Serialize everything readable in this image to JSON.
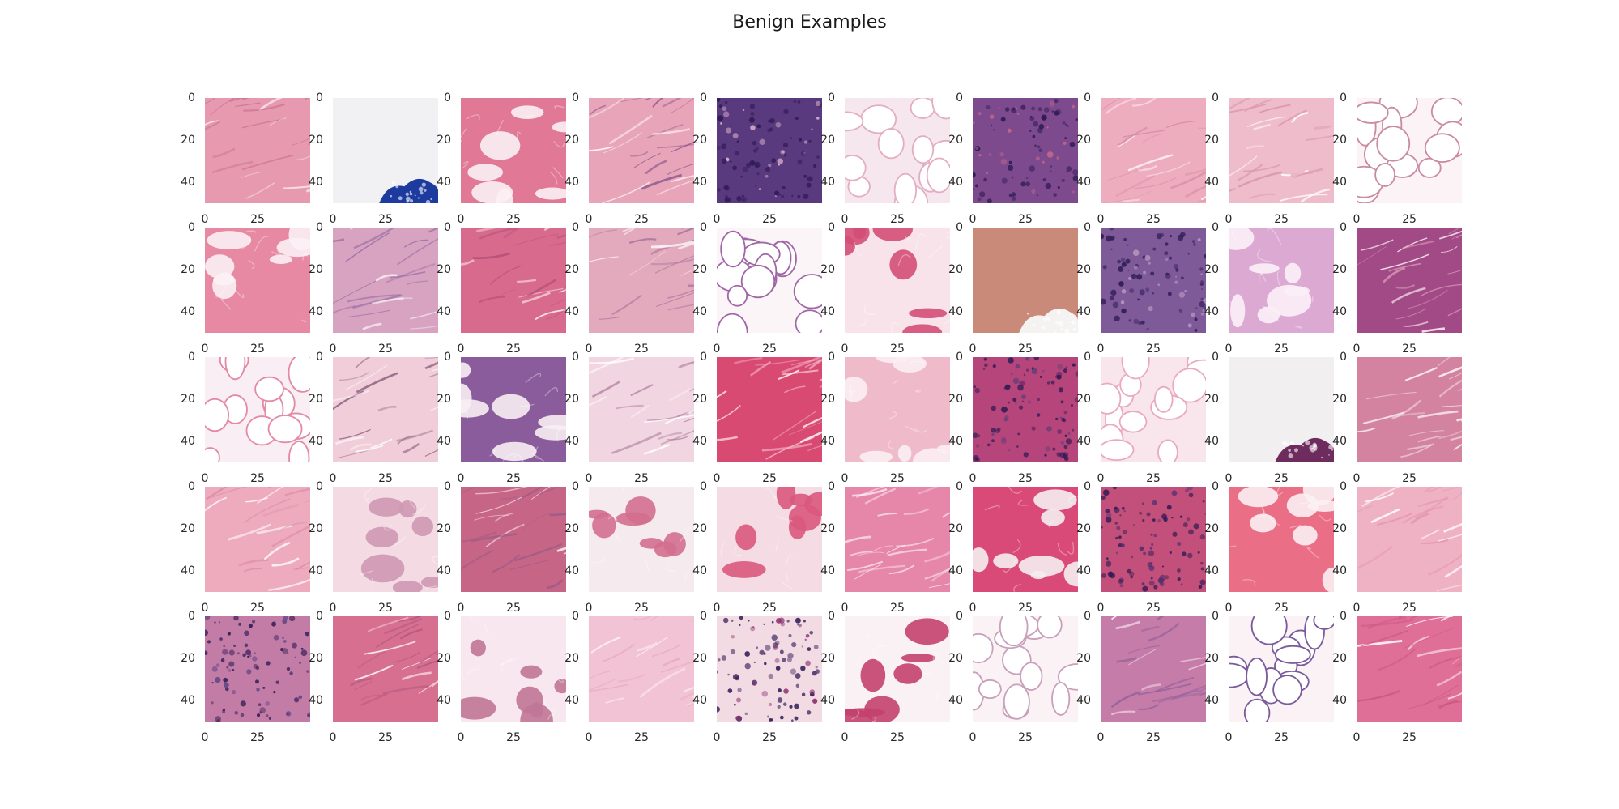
{
  "figure": {
    "title": "Benign Examples",
    "rows": 5,
    "cols": 10,
    "y_tick_labels": [
      "0",
      "20",
      "40"
    ],
    "x_tick_labels": [
      "0",
      "25"
    ],
    "tiles": [
      {
        "base": "#e79aaf",
        "accent": "#c46c89",
        "pattern": "fibers"
      },
      {
        "base": "#f1f1f3",
        "accent": "#1d3a9e",
        "pattern": "corner-blob"
      },
      {
        "base": "#e07896",
        "accent": "#fbeff4",
        "pattern": "fat-patches"
      },
      {
        "base": "#e8a4b8",
        "accent": "#7a4a84",
        "pattern": "fibers"
      },
      {
        "base": "#5a3a7e",
        "accent": "#e0b6cd",
        "pattern": "dense"
      },
      {
        "base": "#f6e6ed",
        "accent": "#e3aec2",
        "pattern": "fat-cells"
      },
      {
        "base": "#7d4a8e",
        "accent": "#c76a8a",
        "pattern": "dense"
      },
      {
        "base": "#eeadbf",
        "accent": "#d48aa2",
        "pattern": "fibers"
      },
      {
        "base": "#efbccb",
        "accent": "#d995ad",
        "pattern": "fibers"
      },
      {
        "base": "#fbf3f6",
        "accent": "#c98aa3",
        "pattern": "fat-cells"
      },
      {
        "base": "#e889a4",
        "accent": "#fbf1f5",
        "pattern": "fat-patches"
      },
      {
        "base": "#d7a3c0",
        "accent": "#9a6ea6",
        "pattern": "fibers"
      },
      {
        "base": "#d86a8d",
        "accent": "#b24f78",
        "pattern": "fibers"
      },
      {
        "base": "#e3a9bd",
        "accent": "#9e6c96",
        "pattern": "fibers"
      },
      {
        "base": "#fbf5f8",
        "accent": "#a067a6",
        "pattern": "fat-cells"
      },
      {
        "base": "#f8e3ea",
        "accent": "#d44e77",
        "pattern": "fat-patches"
      },
      {
        "base": "#c98a7a",
        "accent": "#f5f2f2",
        "pattern": "corner-blob"
      },
      {
        "base": "#7e5a98",
        "accent": "#b79ac0",
        "pattern": "dense"
      },
      {
        "base": "#dca9d2",
        "accent": "#fbf0f7",
        "pattern": "fat-patches"
      },
      {
        "base": "#a24a85",
        "accent": "#e7a9c4",
        "pattern": "fibers"
      },
      {
        "base": "#f8eef3",
        "accent": "#e389a5",
        "pattern": "fat-cells"
      },
      {
        "base": "#f0cdd8",
        "accent": "#8a5e7e",
        "pattern": "fibers"
      },
      {
        "base": "#8a5c9c",
        "accent": "#f7eef4",
        "pattern": "fat-patches"
      },
      {
        "base": "#f1d5e0",
        "accent": "#b07ea0",
        "pattern": "fibers"
      },
      {
        "base": "#d94a73",
        "accent": "#f4c3d2",
        "pattern": "fibers"
      },
      {
        "base": "#efbbcb",
        "accent": "#fbeef3",
        "pattern": "fat-patches"
      },
      {
        "base": "#b5457a",
        "accent": "#5f3f76",
        "pattern": "dense"
      },
      {
        "base": "#f9e5ec",
        "accent": "#eaa9bf",
        "pattern": "fat-cells"
      },
      {
        "base": "#f2eff1",
        "accent": "#6e2b5e",
        "pattern": "corner-blob"
      },
      {
        "base": "#d3839f",
        "accent": "#f5eff2",
        "pattern": "fibers"
      },
      {
        "base": "#eeabbe",
        "accent": "#d98ba5",
        "pattern": "fibers"
      },
      {
        "base": "#f4dbe3",
        "accent": "#cf97b1",
        "pattern": "fat-patches"
      },
      {
        "base": "#c76586",
        "accent": "#9a5a86",
        "pattern": "fibers"
      },
      {
        "base": "#f5eaee",
        "accent": "#d36f8f",
        "pattern": "fat-patches"
      },
      {
        "base": "#f5dbe4",
        "accent": "#d9587d",
        "pattern": "fat-patches"
      },
      {
        "base": "#e686a9",
        "accent": "#f9e7ee",
        "pattern": "fibers"
      },
      {
        "base": "#d94a78",
        "accent": "#f4eef0",
        "pattern": "fat-patches"
      },
      {
        "base": "#c3507a",
        "accent": "#4e2e72",
        "pattern": "dense"
      },
      {
        "base": "#ea6f86",
        "accent": "#fbf0f3",
        "pattern": "fat-patches"
      },
      {
        "base": "#efb1c4",
        "accent": "#e395ae",
        "pattern": "fibers"
      },
      {
        "base": "#c27ca6",
        "accent": "#5a4284",
        "pattern": "dense"
      },
      {
        "base": "#d66f90",
        "accent": "#b35680",
        "pattern": "fibers"
      },
      {
        "base": "#f8e7ee",
        "accent": "#c07596",
        "pattern": "fat-patches"
      },
      {
        "base": "#f2c3d4",
        "accent": "#e7a6bd",
        "pattern": "fibers"
      },
      {
        "base": "#f3dbe4",
        "accent": "#8a2f6c",
        "pattern": "dense"
      },
      {
        "base": "#faf1f4",
        "accent": "#c3416d",
        "pattern": "fat-patches"
      },
      {
        "base": "#faf2f5",
        "accent": "#c9a0bb",
        "pattern": "fat-cells"
      },
      {
        "base": "#c67ca8",
        "accent": "#8a5f9a",
        "pattern": "fibers"
      },
      {
        "base": "#fbf2f6",
        "accent": "#7a5a9a",
        "pattern": "fat-cells"
      },
      {
        "base": "#df6f96",
        "accent": "#c9557f",
        "pattern": "fibers"
      }
    ]
  }
}
